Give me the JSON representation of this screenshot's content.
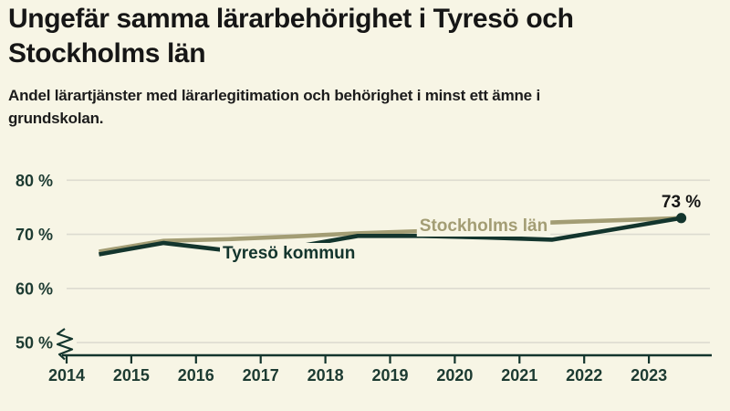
{
  "title": {
    "line1": "Ungefär samma lärarbehörighet i Tyresö och",
    "line2": "Stockholms län"
  },
  "subtitle": {
    "line1": "Andel lärartjänster med lärarlegitimation och behörighet i minst ett ämne i",
    "line2": "grundskolan."
  },
  "colors": {
    "background": "#f7f5e5",
    "title_text": "#161616",
    "axis_text": "#1d3b32",
    "grid_line": "#dddbd0",
    "axis_line": "#13352d",
    "tyreso_line": "#13352d",
    "stockholm_line": "#a39d74",
    "annotation_text": "#161616"
  },
  "chart_data": {
    "type": "line",
    "x": [
      2014.5,
      2015.5,
      2016.5,
      2017.5,
      2018.5,
      2019.5,
      2020.5,
      2021.5,
      2022.5,
      2023.5
    ],
    "series": [
      {
        "name": "Tyresö kommun",
        "color": "#13352d",
        "values": [
          66.3,
          68.4,
          67.0,
          67.6,
          69.7,
          69.7,
          69.4,
          69.0,
          71.0,
          73.0
        ]
      },
      {
        "name": "Stockholms län",
        "color": "#a39d74",
        "values": [
          66.8,
          68.8,
          69.1,
          69.6,
          70.2,
          70.6,
          71.4,
          72.2,
          72.6,
          73.0
        ]
      }
    ],
    "yticks": [
      {
        "label": "80 %",
        "value": 80
      },
      {
        "label": "70 %",
        "value": 70
      },
      {
        "label": "60 %",
        "value": 60
      },
      {
        "label": "50 %",
        "value": 50
      }
    ],
    "xticks": [
      {
        "label": "2014",
        "value": 2014
      },
      {
        "label": "2015",
        "value": 2015
      },
      {
        "label": "2016",
        "value": 2016
      },
      {
        "label": "2017",
        "value": 2017
      },
      {
        "label": "2018",
        "value": 2018
      },
      {
        "label": "2019",
        "value": 2019
      },
      {
        "label": "2020",
        "value": 2020
      },
      {
        "label": "2021",
        "value": 2021
      },
      {
        "label": "2022",
        "value": 2022
      },
      {
        "label": "2023",
        "value": 2023
      }
    ],
    "ylim": [
      50,
      80
    ],
    "xlim": [
      2014,
      2024
    ],
    "axis_break_at_bottom": true,
    "grid": "horizontal",
    "legend_position": "inline-labels",
    "end_dot_series": "Tyresö kommun",
    "end_annotation": {
      "text": "73 %",
      "x": 2023.5,
      "y": 73
    }
  }
}
